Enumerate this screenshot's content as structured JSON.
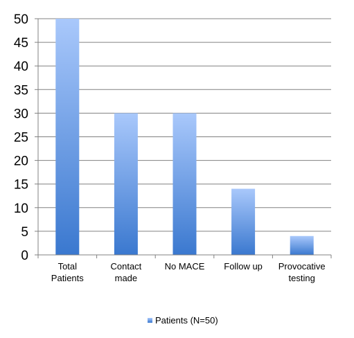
{
  "chart_data": {
    "type": "bar",
    "categories": [
      [
        "Total",
        "Patients"
      ],
      [
        "Contact",
        "made"
      ],
      [
        "No MACE"
      ],
      [
        "Follow up"
      ],
      [
        "Provocative",
        "testing"
      ]
    ],
    "series": [
      {
        "name": "Patients (N=50)",
        "values": [
          50,
          30,
          30,
          14,
          4
        ]
      }
    ],
    "ylim": [
      0,
      50
    ],
    "yticks": [
      0,
      5,
      10,
      15,
      20,
      25,
      30,
      35,
      40,
      45,
      50
    ],
    "grid": true,
    "legend": "bottom",
    "colors": {
      "bar_top": "#a9c8fb",
      "bar_bottom": "#3a78cf",
      "grid": "#808080",
      "axis": "#808080"
    }
  }
}
